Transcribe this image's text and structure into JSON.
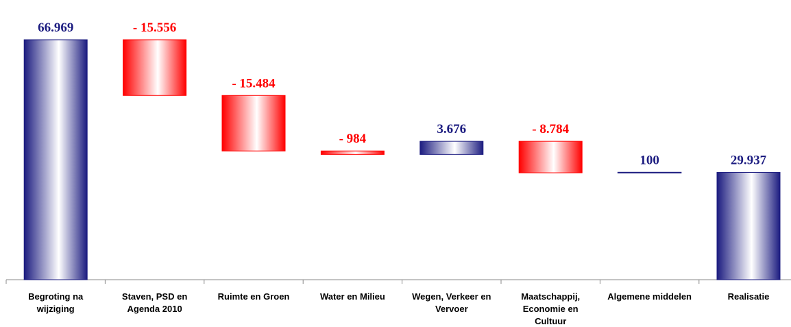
{
  "chart_data": {
    "type": "waterfall",
    "categories": [
      "Begroting na wijziging",
      "Staven, PSD en Agenda 2010",
      "Ruimte en Groen",
      "Water en Milieu",
      "Wegen, Verkeer en Vervoer",
      "Maatschappij, Economie en Cultuur",
      "Algemene middelen",
      "Realisatie"
    ],
    "values": [
      66969,
      -15556,
      -15484,
      -984,
      3676,
      -8784,
      100,
      29937
    ],
    "value_labels": [
      "66.969",
      "- 15.556",
      "- 15.484",
      "- 984",
      "3.676",
      "- 8.784",
      "100",
      "29.937"
    ],
    "positive_color": "#1c1c80",
    "negative_color": "#ff0000",
    "ylim": [
      0,
      75000
    ]
  }
}
